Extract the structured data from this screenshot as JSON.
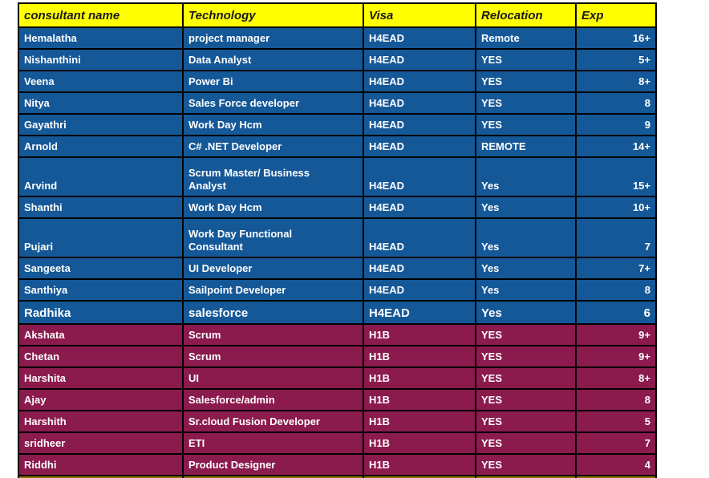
{
  "colors": {
    "header_bg": "#FFFF00",
    "header_text": "#1A1A1A",
    "h4ead_row_bg": "#155898",
    "h1b_row_bg": "#8B1A4D",
    "next_section_bg": "#8E7302",
    "row_text": "#FFFFFF",
    "grid_border": "#000000"
  },
  "table": {
    "columns": [
      {
        "label": "consultant name"
      },
      {
        "label": "Technology"
      },
      {
        "label": "Visa"
      },
      {
        "label": "Relocation"
      },
      {
        "label": "Exp"
      }
    ],
    "rows": [
      {
        "name": "Hemalatha",
        "technology": "project manager",
        "visa": "H4EAD",
        "relocation": "Remote",
        "exp": "16+",
        "group": "h4ead"
      },
      {
        "name": "Nishanthini",
        "technology": "Data Analyst",
        "visa": "H4EAD",
        "relocation": "YES",
        "exp": "5+",
        "group": "h4ead"
      },
      {
        "name": "Veena",
        "technology": "Power Bi",
        "visa": "H4EAD",
        "relocation": "YES",
        "exp": "8+",
        "group": "h4ead"
      },
      {
        "name": "Nitya",
        "technology": "Sales Force developer",
        "visa": "H4EAD",
        "relocation": "YES",
        "exp": "8",
        "group": "h4ead"
      },
      {
        "name": "Gayathri",
        "technology": "Work Day Hcm",
        "visa": "H4EAD",
        "relocation": "YES",
        "exp": "9",
        "group": "h4ead"
      },
      {
        "name": "Arnold",
        "technology": "C# .NET Developer",
        "visa": "H4EAD",
        "relocation": "REMOTE",
        "exp": "14+",
        "group": "h4ead"
      },
      {
        "name": "Arvind",
        "technology": "Scrum Master/ Business Analyst",
        "visa": "H4EAD",
        "relocation": "Yes",
        "exp": "15+",
        "group": "h4ead"
      },
      {
        "name": "Shanthi",
        "technology": "Work Day Hcm",
        "visa": "H4EAD",
        "relocation": "Yes",
        "exp": "10+",
        "group": "h4ead"
      },
      {
        "name": "Pujari",
        "technology": "Work Day Functional Consultant",
        "visa": "H4EAD",
        "relocation": "Yes",
        "exp": "7",
        "group": "h4ead"
      },
      {
        "name": "Sangeeta",
        "technology": "UI Developer",
        "visa": "H4EAD",
        "relocation": "Yes",
        "exp": "7+",
        "group": "h4ead"
      },
      {
        "name": "Santhiya",
        "technology": "Sailpoint Developer",
        "visa": "H4EAD",
        "relocation": "Yes",
        "exp": "8",
        "group": "h4ead"
      },
      {
        "name": "Radhika",
        "technology": "salesforce",
        "visa": "H4EAD",
        "relocation": "Yes",
        "exp": "6",
        "group": "h4ead"
      },
      {
        "name": "Akshata",
        "technology": "Scrum",
        "visa": "H1B",
        "relocation": "YES",
        "exp": "9+",
        "group": "h1b"
      },
      {
        "name": "Chetan",
        "technology": "Scrum",
        "visa": "H1B",
        "relocation": "YES",
        "exp": "9+",
        "group": "h1b"
      },
      {
        "name": "Harshita",
        "technology": "UI",
        "visa": "H1B",
        "relocation": "YES",
        "exp": "8+",
        "group": "h1b"
      },
      {
        "name": "Ajay",
        "technology": "Salesforce/admin",
        "visa": "H1B",
        "relocation": "YES",
        "exp": "8",
        "group": "h1b"
      },
      {
        "name": "Harshith",
        "technology": "Sr.cloud Fusion Developer",
        "visa": "H1B",
        "relocation": "YES",
        "exp": "5",
        "group": "h1b"
      },
      {
        "name": "sridheer",
        "technology": "ETI",
        "visa": "H1B",
        "relocation": "YES",
        "exp": "7",
        "group": "h1b"
      },
      {
        "name": "Riddhi",
        "technology": "Product Designer",
        "visa": "H1B",
        "relocation": "YES",
        "exp": "4",
        "group": "h1b"
      }
    ]
  }
}
